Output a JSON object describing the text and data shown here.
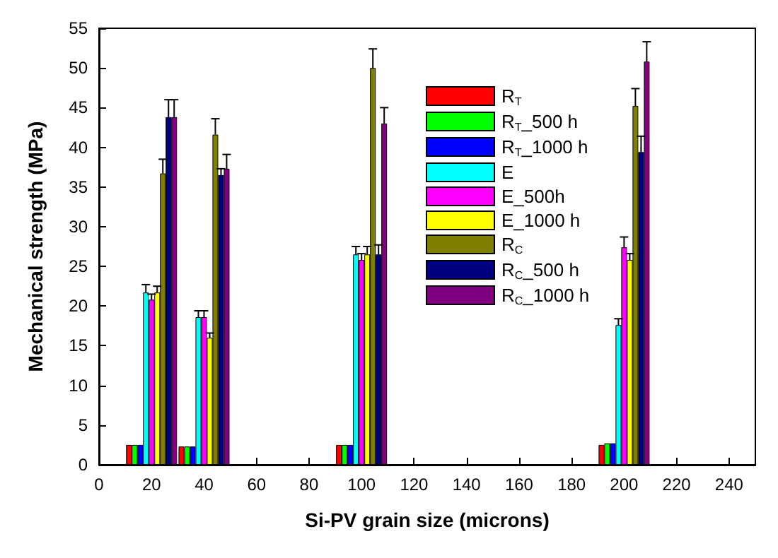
{
  "chart_data": {
    "type": "bar",
    "xlabel": "Si-PV grain size (microns)",
    "ylabel": "Mechanical strength (MPa)",
    "x": [
      20,
      40,
      100,
      200
    ],
    "xlim": [
      0,
      250
    ],
    "xticks": [
      0,
      20,
      40,
      60,
      80,
      100,
      120,
      140,
      160,
      180,
      200,
      220,
      240
    ],
    "ylim": [
      0,
      55
    ],
    "yticks": [
      0,
      5,
      10,
      15,
      20,
      25,
      30,
      35,
      40,
      45,
      50,
      55
    ],
    "grid": false,
    "legend": "top",
    "series": [
      {
        "name": "R$_{T}$",
        "color": "#ff0000",
        "values": [
          2.5,
          2.3,
          2.5,
          2.5
        ]
      },
      {
        "name": "R$_{T}$_500 h",
        "color": "#00ff00",
        "values": [
          2.5,
          2.3,
          2.5,
          2.7
        ]
      },
      {
        "name": "R$_{T}$_1000 h",
        "color": "#0000ff",
        "values": [
          2.5,
          2.3,
          2.5,
          2.7
        ]
      },
      {
        "name": "E",
        "color": "#00ffff",
        "values": [
          21.7,
          18.6,
          26.5,
          17.6
        ],
        "errors": [
          [
            21.7,
            22.7
          ],
          [
            18.6,
            19.4
          ],
          [
            26.5,
            27.5
          ],
          [
            17.6,
            18.4
          ]
        ]
      },
      {
        "name": "E_500h",
        "color": "#ff00ff",
        "values": [
          20.8,
          18.6,
          25.8,
          27.4
        ],
        "errors": [
          [
            20.8,
            21.5
          ],
          [
            18.6,
            19.4
          ],
          [
            25.8,
            26.6
          ],
          [
            27.4,
            28.7
          ]
        ]
      },
      {
        "name": "E_1000 h",
        "color": "#ffff00",
        "values": [
          21.7,
          16,
          26.5,
          25.8
        ],
        "errors": [
          [
            21.7,
            22.5
          ],
          [
            16,
            16.6
          ],
          [
            26.5,
            27.5
          ],
          [
            25.8,
            26.6
          ]
        ]
      },
      {
        "name": "R$_{C}$",
        "color": "#808000",
        "values": [
          36.7,
          41.6,
          50,
          45.2
        ],
        "errors": [
          [
            36.7,
            38.5
          ],
          [
            41.6,
            43.6
          ],
          [
            50,
            52.4
          ],
          [
            45.2,
            47.4
          ]
        ]
      },
      {
        "name": "R$_{C}$_500 h",
        "color": "#000080",
        "values": [
          43.8,
          36.5,
          26.5,
          39.4
        ],
        "errors": [
          [
            43.8,
            46
          ],
          [
            36.5,
            37.3
          ],
          [
            26.5,
            27.7
          ],
          [
            39.4,
            41.4
          ]
        ]
      },
      {
        "name": "R$_{C}$_1000 h",
        "color": "#800080",
        "values": [
          43.8,
          37.3,
          43,
          50.8
        ],
        "errors": [
          [
            43.8,
            46
          ],
          [
            37.3,
            39.1
          ],
          [
            43,
            45
          ],
          [
            50.8,
            53.3
          ]
        ]
      }
    ]
  }
}
